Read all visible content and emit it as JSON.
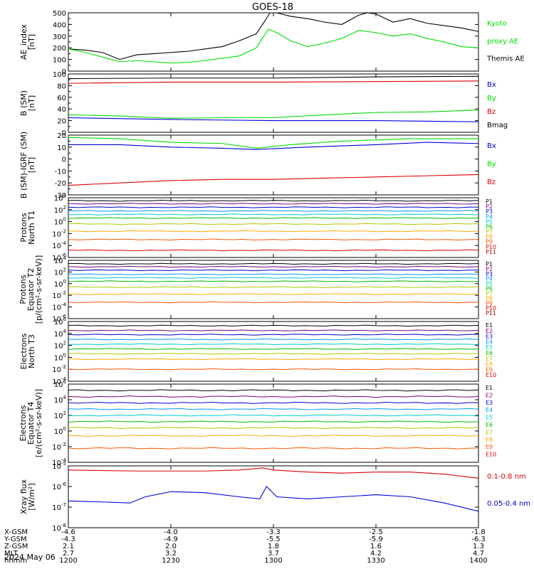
{
  "title": "GOES-18",
  "colors": {
    "black": "#000000",
    "green": "#00dd00",
    "red": "#dd0000",
    "blue": "#0000dd",
    "ladder": [
      "#000000",
      "#7a007a",
      "#0000cc",
      "#0099ff",
      "#00cccc",
      "#00bb00",
      "#aacc00",
      "#ffaa00",
      "#ff5500",
      "#dd0000",
      "#aa0000"
    ]
  },
  "panels": [
    {
      "id": "ae",
      "ylabel": [
        "AE_index",
        "[nT]"
      ],
      "scale": "linear",
      "ylim": [
        0,
        500
      ],
      "yticks": [
        "0",
        "100",
        "200",
        "300",
        "400",
        "500"
      ],
      "legend": [
        {
          "text": "Kyoto",
          "color": "green"
        },
        {
          "text": "proxy AE",
          "color": "green"
        },
        {
          "text": "Themis AE",
          "color": "black"
        }
      ]
    },
    {
      "id": "bsm",
      "ylabel": [
        "B (SM)",
        "[nT]"
      ],
      "scale": "linear",
      "ylim": [
        0,
        100
      ],
      "yticks": [
        "0",
        "20",
        "40",
        "60",
        "80",
        "100"
      ],
      "legend": [
        {
          "text": "Bx",
          "color": "blue"
        },
        {
          "text": "By",
          "color": "green"
        },
        {
          "text": "Bz",
          "color": "red"
        },
        {
          "text": "Bmag",
          "color": "black"
        }
      ]
    },
    {
      "id": "bigrf",
      "ylabel": [
        "B (SM)-IGRF (SM)",
        "[nT]"
      ],
      "scale": "linear",
      "ylim": [
        -30,
        20
      ],
      "yticks": [
        "-30",
        "-20",
        "-10",
        "0",
        "10",
        "20"
      ],
      "legend": [
        {
          "text": "Bx",
          "color": "blue"
        },
        {
          "text": "By",
          "color": "green"
        },
        {
          "text": "Bz",
          "color": "red"
        }
      ]
    },
    {
      "id": "pn",
      "ylabel": [
        "Protons",
        "North T1"
      ],
      "scale": "log",
      "ylim": [
        -6,
        4
      ],
      "yticks": [
        "10^-6",
        "10^-4",
        "10^-2",
        "10^0",
        "10^2",
        "10^4"
      ],
      "legend": [
        "P1",
        "P2",
        "P3",
        "P4",
        "P5",
        "P6",
        "P7",
        "P8",
        "P9",
        "P10",
        "P11"
      ]
    },
    {
      "id": "pe",
      "ylabel": [
        "Protons",
        "Equator T2",
        "[p/(cm²-s-sr-keV)]"
      ],
      "scale": "log",
      "ylim": [
        -6,
        4
      ],
      "yticks": [
        "10^-6",
        "10^-4",
        "10^-2",
        "10^0",
        "10^2",
        "10^4"
      ],
      "legend": [
        "P1",
        "P2",
        "P3",
        "P4",
        "P5",
        "P6",
        "P7",
        "P8",
        "P9",
        "P10",
        "P11"
      ]
    },
    {
      "id": "en",
      "ylabel": [
        "Electrons",
        "North T3"
      ],
      "scale": "log",
      "ylim": [
        -4,
        6
      ],
      "yticks": [
        "10^-4",
        "10^-2",
        "10^0",
        "10^2",
        "10^4",
        "10^6"
      ],
      "legend": [
        "E1",
        "E2",
        "E3",
        "E4",
        "E5",
        "E6",
        "E7",
        "E8",
        "E9",
        "E10"
      ]
    },
    {
      "id": "ee",
      "ylabel": [
        "Electrons",
        "Equator T4",
        "[e/(cm²-s-sr-keV)]"
      ],
      "scale": "log",
      "ylim": [
        -4,
        6
      ],
      "yticks": [
        "10^-4",
        "10^-2",
        "10^0",
        "10^2",
        "10^4",
        "10^6"
      ],
      "legend": [
        "E1",
        "E2",
        "E3",
        "E4",
        "E5",
        "E6",
        "E7",
        "E8",
        "E9",
        "E10"
      ]
    },
    {
      "id": "xray",
      "ylabel": [
        "Xray flux",
        "[W/m²]"
      ],
      "scale": "log",
      "ylim": [
        -8,
        -5
      ],
      "yticks": [
        "10^-8",
        "10^-7",
        "10^-6",
        "10^-5"
      ],
      "legend": [
        {
          "text": "0.1-0.8 nm",
          "color": "red"
        },
        {
          "text": "0.05-0.4 nm",
          "color": "blue"
        }
      ]
    }
  ],
  "xaxis": {
    "rows": [
      {
        "label": "X-GSM",
        "values": [
          "-4.6",
          "-4.0",
          "-3.3",
          "-2.5",
          "-1.8"
        ]
      },
      {
        "label": "Y-GSM",
        "values": [
          "-4.3",
          "-4.9",
          "-5.5",
          "-5.9",
          "-6.3"
        ]
      },
      {
        "label": "Z-GSM",
        "values": [
          "2.1",
          "2.0",
          "1.8",
          "1.6",
          "1.3"
        ]
      },
      {
        "label": "MLT",
        "values": [
          "2.7",
          "3.2",
          "3.7",
          "4.2",
          "4.7"
        ]
      },
      {
        "label": "hhmm",
        "values": [
          "1200",
          "1230",
          "1300",
          "1330",
          "1400"
        ]
      }
    ],
    "date": "2024 May 06"
  },
  "chart_data": {
    "type": "line",
    "x_unit": "minutes after 1200 UT",
    "series": [
      {
        "panel": "ae",
        "name": "Themis AE",
        "color": "black",
        "points": [
          [
            0,
            190
          ],
          [
            10,
            180
          ],
          [
            20,
            160
          ],
          [
            30,
            100
          ],
          [
            40,
            140
          ],
          [
            50,
            150
          ],
          [
            60,
            160
          ],
          [
            70,
            170
          ],
          [
            80,
            190
          ],
          [
            90,
            210
          ],
          [
            100,
            260
          ],
          [
            110,
            320
          ],
          [
            115,
            430
          ],
          [
            118,
            500
          ],
          [
            122,
            500
          ],
          [
            130,
            470
          ],
          [
            140,
            450
          ],
          [
            150,
            420
          ],
          [
            160,
            400
          ],
          [
            170,
            480
          ],
          [
            175,
            500
          ],
          [
            180,
            490
          ],
          [
            190,
            420
          ],
          [
            200,
            450
          ],
          [
            210,
            410
          ],
          [
            220,
            390
          ],
          [
            230,
            370
          ],
          [
            240,
            340
          ]
        ]
      },
      {
        "panel": "ae",
        "name": "Kyoto",
        "color": "green",
        "points": [
          [
            0,
            190
          ],
          [
            10,
            160
          ],
          [
            20,
            120
          ],
          [
            30,
            80
          ],
          [
            40,
            90
          ],
          [
            50,
            80
          ],
          [
            60,
            70
          ],
          [
            70,
            75
          ],
          [
            80,
            90
          ],
          [
            90,
            110
          ],
          [
            100,
            130
          ],
          [
            110,
            200
          ],
          [
            117,
            360
          ],
          [
            122,
            330
          ],
          [
            130,
            260
          ],
          [
            140,
            210
          ],
          [
            150,
            240
          ],
          [
            160,
            280
          ],
          [
            170,
            350
          ],
          [
            180,
            330
          ],
          [
            190,
            300
          ],
          [
            200,
            320
          ],
          [
            210,
            280
          ],
          [
            220,
            250
          ],
          [
            230,
            210
          ],
          [
            240,
            200
          ]
        ]
      },
      {
        "panel": "bsm",
        "name": "Bmag",
        "color": "black",
        "points": [
          [
            0,
            92
          ],
          [
            60,
            93
          ],
          [
            120,
            93
          ],
          [
            180,
            95
          ],
          [
            240,
            96
          ]
        ]
      },
      {
        "panel": "bsm",
        "name": "Bz",
        "color": "red",
        "points": [
          [
            0,
            84
          ],
          [
            60,
            86
          ],
          [
            120,
            86
          ],
          [
            180,
            87
          ],
          [
            240,
            88
          ]
        ]
      },
      {
        "panel": "bsm",
        "name": "By",
        "color": "green",
        "points": [
          [
            0,
            30
          ],
          [
            30,
            28
          ],
          [
            60,
            24
          ],
          [
            90,
            25
          ],
          [
            120,
            25
          ],
          [
            150,
            30
          ],
          [
            180,
            34
          ],
          [
            210,
            35
          ],
          [
            240,
            38
          ]
        ]
      },
      {
        "panel": "bsm",
        "name": "Bx",
        "color": "blue",
        "points": [
          [
            0,
            25
          ],
          [
            60,
            22
          ],
          [
            120,
            20
          ],
          [
            180,
            20
          ],
          [
            240,
            18
          ]
        ]
      },
      {
        "panel": "bigrf",
        "name": "By",
        "color": "green",
        "points": [
          [
            0,
            18
          ],
          [
            30,
            17
          ],
          [
            60,
            14
          ],
          [
            90,
            13
          ],
          [
            110,
            9
          ],
          [
            130,
            12
          ],
          [
            160,
            15
          ],
          [
            200,
            17
          ],
          [
            240,
            17
          ]
        ]
      },
      {
        "panel": "bigrf",
        "name": "Bx",
        "color": "blue",
        "points": [
          [
            0,
            12
          ],
          [
            30,
            12
          ],
          [
            60,
            10
          ],
          [
            90,
            9
          ],
          [
            110,
            8
          ],
          [
            140,
            10
          ],
          [
            180,
            12
          ],
          [
            210,
            14
          ],
          [
            240,
            13
          ]
        ]
      },
      {
        "panel": "bigrf",
        "name": "Bz",
        "color": "red",
        "points": [
          [
            0,
            -22
          ],
          [
            30,
            -20
          ],
          [
            60,
            -18
          ],
          [
            90,
            -17
          ],
          [
            120,
            -17
          ],
          [
            150,
            -16
          ],
          [
            180,
            -15
          ],
          [
            210,
            -14
          ],
          [
            240,
            -13
          ]
        ]
      },
      {
        "panel": "pn",
        "name": "P1",
        "level": 3.5
      },
      {
        "panel": "pn",
        "name": "P2",
        "level": 3.0
      },
      {
        "panel": "pn",
        "name": "P3",
        "level": 2.4
      },
      {
        "panel": "pn",
        "name": "P4",
        "level": 1.8
      },
      {
        "panel": "pn",
        "name": "P5",
        "level": 1.2
      },
      {
        "panel": "pn",
        "name": "P6",
        "level": 0.6
      },
      {
        "panel": "pn",
        "name": "P7",
        "level": -0.4
      },
      {
        "panel": "pn",
        "name": "P8",
        "level": -1.6
      },
      {
        "panel": "pn",
        "name": "P9",
        "level": -3.0
      },
      {
        "panel": "pn",
        "name": "P10",
        "level": -4.8
      },
      {
        "panel": "pe",
        "name": "P1",
        "level": 3.4
      },
      {
        "panel": "pe",
        "name": "P2",
        "level": 2.9
      },
      {
        "panel": "pe",
        "name": "P3",
        "level": 2.3
      },
      {
        "panel": "pe",
        "name": "P4",
        "level": 1.6
      },
      {
        "panel": "pe",
        "name": "P5",
        "level": 1.0
      },
      {
        "panel": "pe",
        "name": "P6",
        "level": 0.4
      },
      {
        "panel": "pe",
        "name": "P7",
        "level": -0.6
      },
      {
        "panel": "pe",
        "name": "P8",
        "level": -1.8
      },
      {
        "panel": "pe",
        "name": "P9",
        "level": -3.2
      },
      {
        "panel": "en",
        "name": "E1",
        "level": 5.3
      },
      {
        "panel": "en",
        "name": "E2",
        "level": 4.5
      },
      {
        "panel": "en",
        "name": "E3",
        "level": 3.8
      },
      {
        "panel": "en",
        "name": "E4",
        "level": 3.0
      },
      {
        "panel": "en",
        "name": "E5",
        "level": 2.2
      },
      {
        "panel": "en",
        "name": "E6",
        "level": 1.4
      },
      {
        "panel": "en",
        "name": "E7",
        "level": 0.6
      },
      {
        "panel": "en",
        "name": "E8",
        "level": -0.3
      },
      {
        "panel": "en",
        "name": "E9",
        "level": -2.0
      },
      {
        "panel": "ee",
        "name": "E1",
        "level": 5.2
      },
      {
        "panel": "ee",
        "name": "E2",
        "level": 4.4
      },
      {
        "panel": "ee",
        "name": "E3",
        "level": 3.6
      },
      {
        "panel": "ee",
        "name": "E4",
        "level": 2.8
      },
      {
        "panel": "ee",
        "name": "E5",
        "level": 2.0
      },
      {
        "panel": "ee",
        "name": "E6",
        "level": 1.2
      },
      {
        "panel": "ee",
        "name": "E7",
        "level": 0.4
      },
      {
        "panel": "ee",
        "name": "E8",
        "level": -0.6
      },
      {
        "panel": "ee",
        "name": "E9",
        "level": -2.2
      },
      {
        "panel": "xray",
        "name": "0.1-0.8 nm",
        "color": "red",
        "points": [
          [
            0,
            -5.2
          ],
          [
            40,
            -5.25
          ],
          [
            80,
            -5.25
          ],
          [
            100,
            -5.2
          ],
          [
            114,
            -5.1
          ],
          [
            120,
            -5.2
          ],
          [
            140,
            -5.3
          ],
          [
            160,
            -5.35
          ],
          [
            180,
            -5.3
          ],
          [
            200,
            -5.3
          ],
          [
            220,
            -5.4
          ],
          [
            240,
            -5.6
          ]
        ]
      },
      {
        "panel": "xray",
        "name": "0.05-0.4 nm",
        "color": "blue",
        "points": [
          [
            0,
            -6.7
          ],
          [
            20,
            -6.75
          ],
          [
            36,
            -6.8
          ],
          [
            45,
            -6.5
          ],
          [
            60,
            -6.25
          ],
          [
            80,
            -6.3
          ],
          [
            100,
            -6.5
          ],
          [
            112,
            -6.6
          ],
          [
            116,
            -6.0
          ],
          [
            122,
            -6.5
          ],
          [
            140,
            -6.6
          ],
          [
            160,
            -6.5
          ],
          [
            180,
            -6.4
          ],
          [
            200,
            -6.5
          ],
          [
            220,
            -6.8
          ],
          [
            240,
            -7.2
          ]
        ]
      }
    ]
  }
}
